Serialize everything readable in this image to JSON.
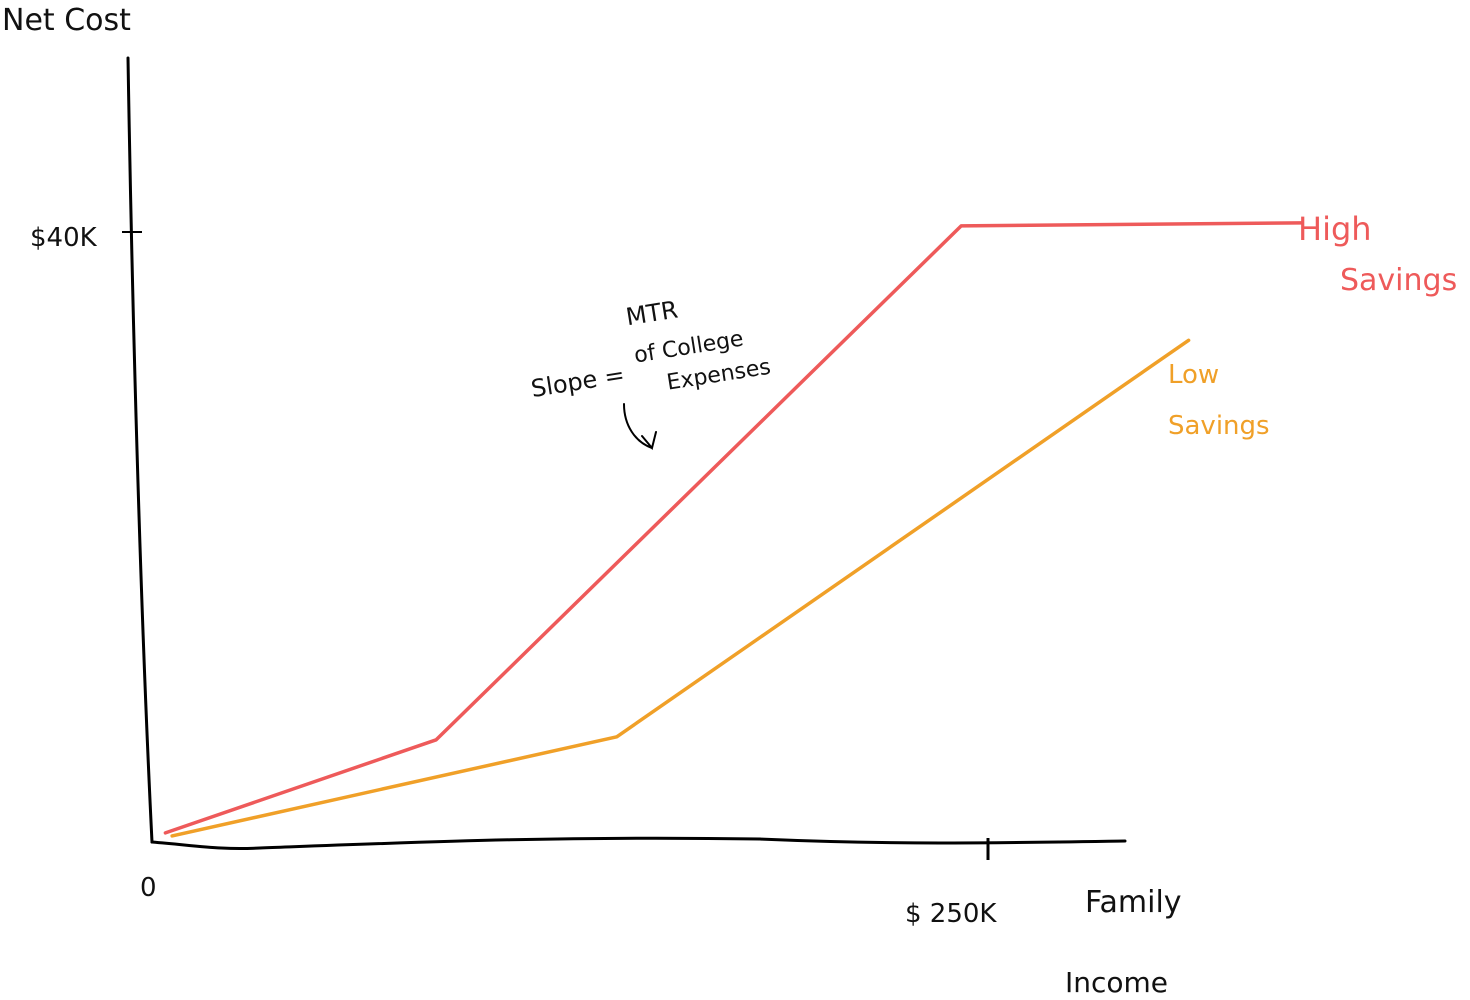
{
  "chart_data": {
    "type": "line",
    "y_axis_label": "Net Cost",
    "x_axis_label_line1": "Family",
    "x_axis_label_line2": "Income",
    "x_origin_label": "0",
    "x_tick_label": "$ 250K",
    "y_tick_label": "$40K",
    "x_tick_value": 250,
    "y_tick_value": 40,
    "xlim": [
      0,
      300
    ],
    "ylim": [
      0,
      53
    ],
    "annotation": {
      "line1": "MTR",
      "line2_left": "Slope =",
      "line2_right": "of College",
      "line3": "Expenses"
    },
    "series": [
      {
        "name_line1": "High",
        "name_line2": "Savings",
        "color": "#ee5a5a",
        "x": [
          4,
          85,
          242,
          344
        ],
        "y": [
          0.6,
          6.7,
          40.4,
          40.6
        ]
      },
      {
        "name_line1": "Low",
        "name_line2": "Savings",
        "color": "#f0a028",
        "x": [
          6,
          139,
          310
        ],
        "y": [
          0.4,
          6.9,
          32.9
        ]
      }
    ]
  }
}
